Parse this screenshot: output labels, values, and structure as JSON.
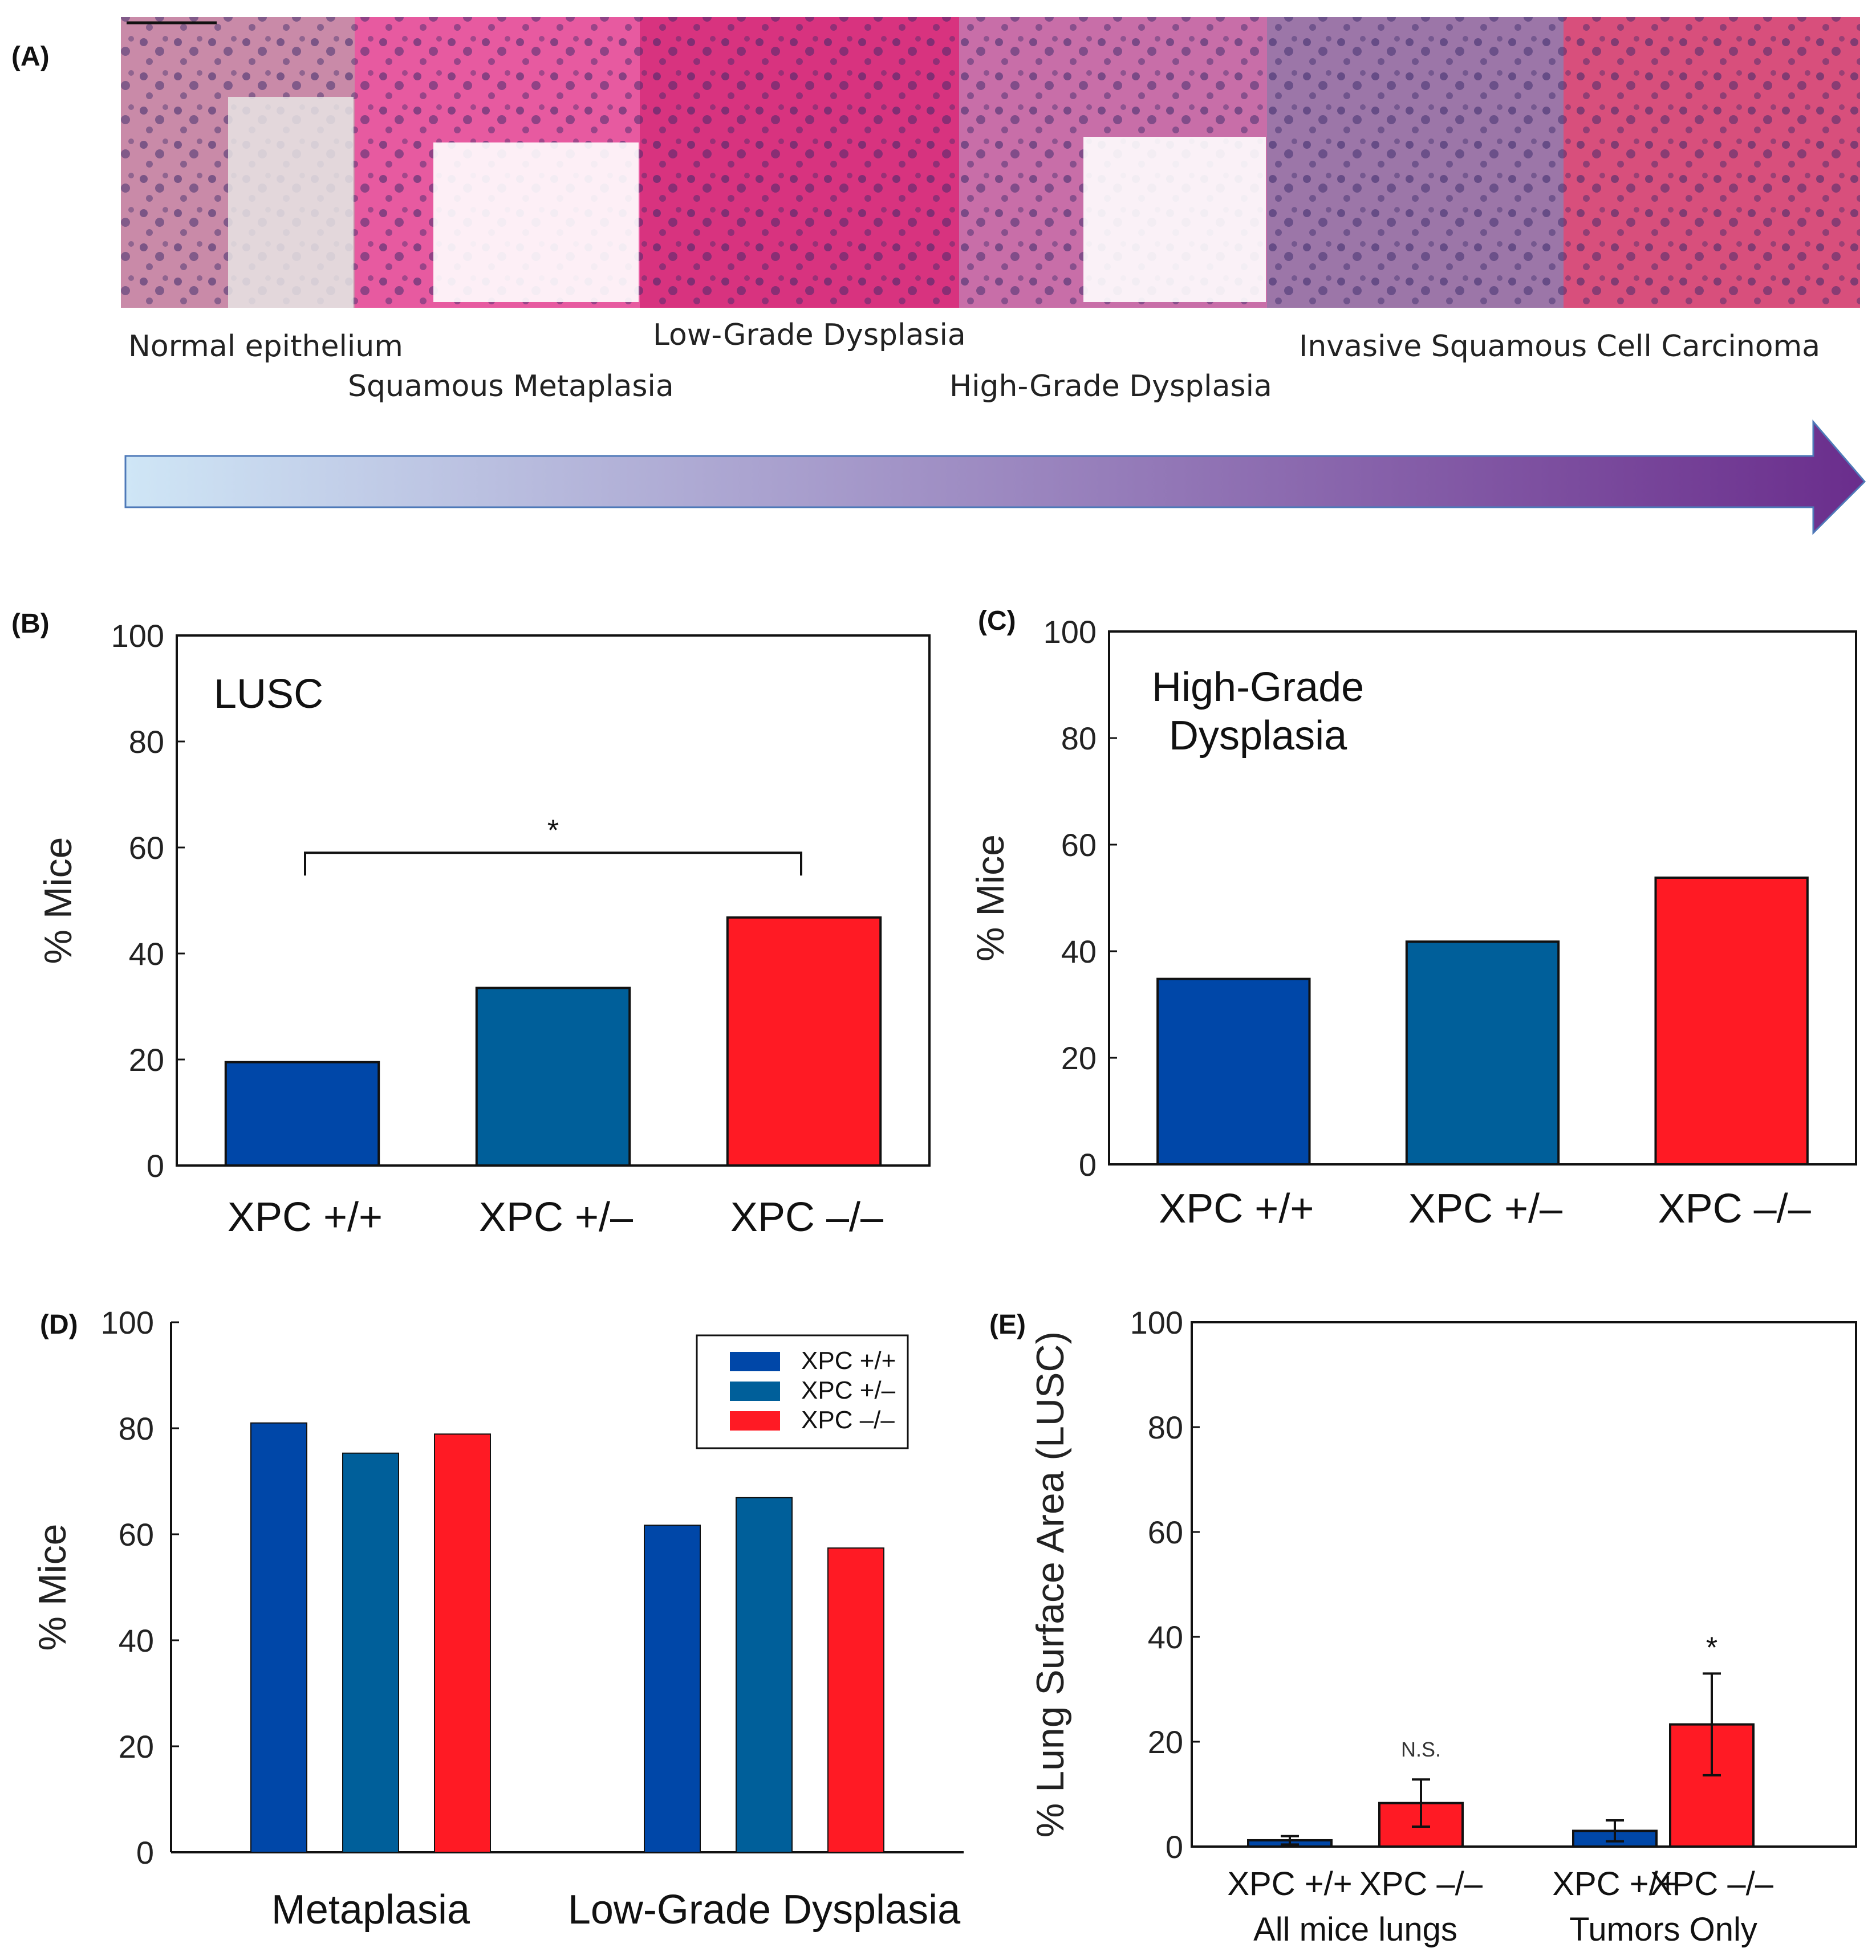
{
  "colors": {
    "xpc_pp": "#0047a8",
    "xpc_pm": "#005f9a",
    "xpc_mm": "#ff1a24",
    "arrow_start": "#cfe6f6",
    "arrow_end": "#6a2d8c"
  },
  "panel_a": {
    "letter": "(A)",
    "stages": [
      {
        "label": "Normal epithelium",
        "tone": "#c98aa8"
      },
      {
        "label": "Squamous Metaplasia",
        "tone": "#e75aa0"
      },
      {
        "label": "Low-Grade Dysplasia",
        "tone": "#d8337f"
      },
      {
        "label": "High-Grade Dysplasia",
        "tone": "#c86ea8"
      },
      {
        "label": "Invasive Squamous Cell Carcinoma",
        "tone": "#9c76a8",
        "tone2": "#d84f7c"
      }
    ]
  },
  "chart_data": [
    {
      "id": "B",
      "letter": "(B)",
      "type": "bar",
      "inset_title": "LUSC",
      "categories": [
        "XPC +/+",
        "XPC +/–",
        "XPC –/–"
      ],
      "values": [
        19.5,
        33.5,
        46.8
      ],
      "ylabel": "% Mice",
      "ylim": [
        0,
        100
      ],
      "yticks": [
        0,
        20,
        40,
        60,
        80,
        100
      ],
      "significance": {
        "from": 0,
        "to": 2,
        "level": 59,
        "label": "*"
      }
    },
    {
      "id": "C",
      "letter": "(C)",
      "type": "bar",
      "inset_title": [
        "High-Grade",
        "Dysplasia"
      ],
      "categories": [
        "XPC +/+",
        "XPC +/–",
        "XPC –/–"
      ],
      "values": [
        34.8,
        41.8,
        53.8
      ],
      "ylabel": "% Mice",
      "ylim": [
        0,
        100
      ],
      "yticks": [
        0,
        20,
        40,
        60,
        80,
        100
      ]
    },
    {
      "id": "D",
      "letter": "(D)",
      "type": "bar",
      "categories": [
        "Metaplasia",
        "Low-Grade Dysplasia"
      ],
      "series": [
        {
          "name": "XPC +/+",
          "values": [
            81.0,
            61.7
          ]
        },
        {
          "name": "XPC +/–",
          "values": [
            75.3,
            66.9
          ]
        },
        {
          "name": "XPC –/–",
          "values": [
            78.9,
            57.4
          ]
        }
      ],
      "ylabel": "% Mice",
      "ylim": [
        0,
        100
      ],
      "yticks": [
        0,
        20,
        40,
        60,
        80,
        100
      ],
      "legend": "top-right"
    },
    {
      "id": "E",
      "letter": "(E)",
      "type": "bar",
      "groups": [
        {
          "label": "All mice lungs",
          "bars": [
            {
              "name": "XPC +/+",
              "value": 1.2,
              "error": 0.8
            },
            {
              "name": "XPC –/–",
              "value": 8.3,
              "error": 4.5,
              "annotation": "N.S."
            }
          ]
        },
        {
          "label": "Tumors Only",
          "bars": [
            {
              "name": "XPC +/+",
              "value": 3.0,
              "error": 2.0
            },
            {
              "name": "XPC –/–",
              "value": 23.3,
              "error": 9.7,
              "annotation": "*"
            }
          ]
        }
      ],
      "ylabel": "% Lung Surface Area (LUSC)",
      "ylim": [
        0,
        100
      ],
      "yticks": [
        0,
        20,
        40,
        60,
        80,
        100
      ]
    }
  ]
}
